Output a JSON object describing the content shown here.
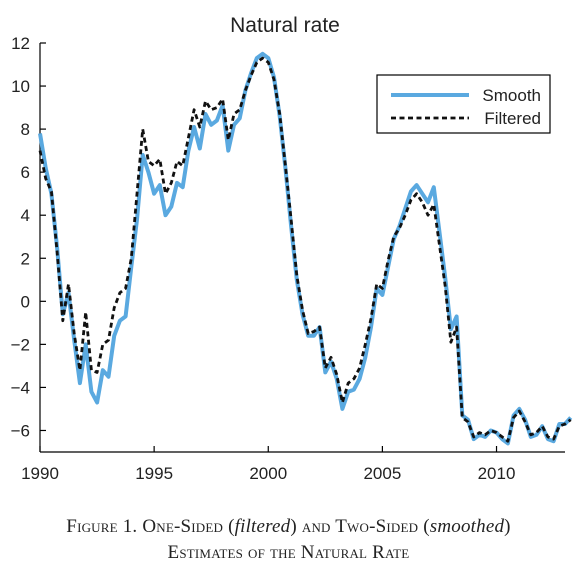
{
  "chart_data": {
    "type": "line",
    "title": "Natural rate",
    "xlabel": "",
    "ylabel": "",
    "xlim": [
      1990,
      2013
    ],
    "ylim": [
      -7,
      12
    ],
    "xticks": [
      1990,
      1995,
      2000,
      2005,
      2010
    ],
    "yticks": [
      12,
      10,
      8,
      6,
      4,
      2,
      0,
      -2,
      -4,
      -6
    ],
    "xtick_labels": [
      "1990",
      "1995",
      "2000",
      "2005",
      "2010"
    ],
    "ytick_labels": [
      "12",
      "10",
      "8",
      "6",
      "4",
      "2",
      "0",
      "−2",
      "−4",
      "−6"
    ],
    "grid": false,
    "legend_position": "top-right",
    "series": [
      {
        "name": "Smooth",
        "color": "#5aa9e0",
        "style": "solid",
        "points": [
          [
            1990.0,
            7.8
          ],
          [
            1990.25,
            6.2
          ],
          [
            1990.5,
            5.0
          ],
          [
            1990.75,
            2.5
          ],
          [
            1991.0,
            -0.6
          ],
          [
            1991.25,
            0.4
          ],
          [
            1991.5,
            -1.8
          ],
          [
            1991.75,
            -3.8
          ],
          [
            1992.0,
            -2.0
          ],
          [
            1992.25,
            -4.2
          ],
          [
            1992.5,
            -4.7
          ],
          [
            1992.75,
            -3.2
          ],
          [
            1993.0,
            -3.5
          ],
          [
            1993.25,
            -1.6
          ],
          [
            1993.5,
            -0.9
          ],
          [
            1993.75,
            -0.7
          ],
          [
            1994.0,
            1.6
          ],
          [
            1994.25,
            3.8
          ],
          [
            1994.5,
            6.8
          ],
          [
            1994.75,
            6.0
          ],
          [
            1995.0,
            5.0
          ],
          [
            1995.25,
            5.4
          ],
          [
            1995.5,
            4.0
          ],
          [
            1995.75,
            4.4
          ],
          [
            1996.0,
            5.5
          ],
          [
            1996.25,
            5.3
          ],
          [
            1996.5,
            7.0
          ],
          [
            1996.75,
            8.1
          ],
          [
            1997.0,
            7.1
          ],
          [
            1997.25,
            8.7
          ],
          [
            1997.5,
            8.2
          ],
          [
            1997.75,
            8.4
          ],
          [
            1998.0,
            9.1
          ],
          [
            1998.25,
            7.0
          ],
          [
            1998.5,
            8.2
          ],
          [
            1998.75,
            8.5
          ],
          [
            1999.0,
            9.8
          ],
          [
            1999.25,
            10.6
          ],
          [
            1999.5,
            11.3
          ],
          [
            1999.75,
            11.5
          ],
          [
            2000.0,
            11.3
          ],
          [
            2000.25,
            10.4
          ],
          [
            2000.5,
            8.6
          ],
          [
            2000.75,
            6.2
          ],
          [
            2001.0,
            3.5
          ],
          [
            2001.25,
            1.0
          ],
          [
            2001.5,
            -0.6
          ],
          [
            2001.75,
            -1.6
          ],
          [
            2002.0,
            -1.6
          ],
          [
            2002.25,
            -1.2
          ],
          [
            2002.5,
            -3.3
          ],
          [
            2002.75,
            -2.8
          ],
          [
            2003.0,
            -3.6
          ],
          [
            2003.25,
            -5.0
          ],
          [
            2003.5,
            -4.2
          ],
          [
            2003.75,
            -4.1
          ],
          [
            2004.0,
            -3.6
          ],
          [
            2004.25,
            -2.6
          ],
          [
            2004.5,
            -1.2
          ],
          [
            2004.75,
            0.6
          ],
          [
            2005.0,
            0.3
          ],
          [
            2005.25,
            1.6
          ],
          [
            2005.5,
            2.9
          ],
          [
            2005.75,
            3.5
          ],
          [
            2006.0,
            4.3
          ],
          [
            2006.25,
            5.1
          ],
          [
            2006.5,
            5.4
          ],
          [
            2006.75,
            5.0
          ],
          [
            2007.0,
            4.6
          ],
          [
            2007.25,
            5.3
          ],
          [
            2007.5,
            3.2
          ],
          [
            2007.75,
            1.1
          ],
          [
            2008.0,
            -1.3
          ],
          [
            2008.25,
            -0.7
          ],
          [
            2008.5,
            -5.3
          ],
          [
            2008.75,
            -5.5
          ],
          [
            2009.0,
            -6.4
          ],
          [
            2009.25,
            -6.2
          ],
          [
            2009.5,
            -6.3
          ],
          [
            2009.75,
            -6.0
          ],
          [
            2010.0,
            -6.1
          ],
          [
            2010.25,
            -6.4
          ],
          [
            2010.5,
            -6.6
          ],
          [
            2010.75,
            -5.3
          ],
          [
            2011.0,
            -5.0
          ],
          [
            2011.25,
            -5.5
          ],
          [
            2011.5,
            -6.3
          ],
          [
            2011.75,
            -6.2
          ],
          [
            2012.0,
            -5.8
          ],
          [
            2012.25,
            -6.4
          ],
          [
            2012.5,
            -6.5
          ],
          [
            2012.75,
            -5.7
          ],
          [
            2013.0,
            -5.7
          ],
          [
            2013.25,
            -5.4
          ]
        ]
      },
      {
        "name": "Filtered",
        "color": "#111111",
        "style": "dashed",
        "points": [
          [
            1990.0,
            7.0
          ],
          [
            1990.25,
            5.7
          ],
          [
            1990.5,
            5.1
          ],
          [
            1990.75,
            2.3
          ],
          [
            1991.0,
            -0.9
          ],
          [
            1991.25,
            0.8
          ],
          [
            1991.5,
            -1.5
          ],
          [
            1991.75,
            -3.2
          ],
          [
            1992.0,
            -0.5
          ],
          [
            1992.25,
            -3.2
          ],
          [
            1992.5,
            -3.3
          ],
          [
            1992.75,
            -2.0
          ],
          [
            1993.0,
            -1.8
          ],
          [
            1993.25,
            -0.3
          ],
          [
            1993.5,
            0.4
          ],
          [
            1993.75,
            0.6
          ],
          [
            1994.0,
            2.0
          ],
          [
            1994.25,
            5.0
          ],
          [
            1994.5,
            8.0
          ],
          [
            1994.75,
            6.5
          ],
          [
            1995.0,
            6.3
          ],
          [
            1995.25,
            6.6
          ],
          [
            1995.5,
            5.0
          ],
          [
            1995.75,
            5.5
          ],
          [
            1996.0,
            6.5
          ],
          [
            1996.25,
            6.3
          ],
          [
            1996.5,
            7.6
          ],
          [
            1996.75,
            8.9
          ],
          [
            1997.0,
            8.1
          ],
          [
            1997.25,
            9.3
          ],
          [
            1997.5,
            8.9
          ],
          [
            1997.75,
            9.0
          ],
          [
            1998.0,
            9.4
          ],
          [
            1998.25,
            7.5
          ],
          [
            1998.5,
            8.7
          ],
          [
            1998.75,
            8.9
          ],
          [
            1999.0,
            9.8
          ],
          [
            1999.25,
            10.5
          ],
          [
            1999.5,
            11.1
          ],
          [
            1999.75,
            11.3
          ],
          [
            2000.0,
            11.1
          ],
          [
            2000.25,
            10.3
          ],
          [
            2000.5,
            8.7
          ],
          [
            2000.75,
            6.3
          ],
          [
            2001.0,
            3.8
          ],
          [
            2001.25,
            1.2
          ],
          [
            2001.5,
            -0.4
          ],
          [
            2001.75,
            -1.5
          ],
          [
            2002.0,
            -1.4
          ],
          [
            2002.25,
            -1.2
          ],
          [
            2002.5,
            -3.1
          ],
          [
            2002.75,
            -2.6
          ],
          [
            2003.0,
            -3.4
          ],
          [
            2003.25,
            -4.7
          ],
          [
            2003.5,
            -3.8
          ],
          [
            2003.75,
            -3.6
          ],
          [
            2004.0,
            -3.1
          ],
          [
            2004.25,
            -2.0
          ],
          [
            2004.5,
            -0.8
          ],
          [
            2004.75,
            0.8
          ],
          [
            2005.0,
            0.6
          ],
          [
            2005.25,
            1.9
          ],
          [
            2005.5,
            3.0
          ],
          [
            2005.75,
            3.4
          ],
          [
            2006.0,
            4.0
          ],
          [
            2006.25,
            4.7
          ],
          [
            2006.5,
            5.0
          ],
          [
            2006.75,
            4.6
          ],
          [
            2007.0,
            4.0
          ],
          [
            2007.25,
            4.5
          ],
          [
            2007.5,
            2.6
          ],
          [
            2007.75,
            0.7
          ],
          [
            2008.0,
            -1.9
          ],
          [
            2008.25,
            -1.2
          ],
          [
            2008.5,
            -5.4
          ],
          [
            2008.75,
            -5.6
          ],
          [
            2009.0,
            -6.3
          ],
          [
            2009.25,
            -6.1
          ],
          [
            2009.5,
            -6.2
          ],
          [
            2009.75,
            -6.0
          ],
          [
            2010.0,
            -6.1
          ],
          [
            2010.25,
            -6.3
          ],
          [
            2010.5,
            -6.5
          ],
          [
            2010.75,
            -5.4
          ],
          [
            2011.0,
            -5.1
          ],
          [
            2011.25,
            -5.6
          ],
          [
            2011.5,
            -6.2
          ],
          [
            2011.75,
            -6.1
          ],
          [
            2012.0,
            -5.8
          ],
          [
            2012.25,
            -6.3
          ],
          [
            2012.5,
            -6.4
          ],
          [
            2012.75,
            -5.8
          ],
          [
            2013.0,
            -5.7
          ],
          [
            2013.25,
            -5.5
          ]
        ]
      }
    ]
  },
  "caption": {
    "line1_prefix": "Figure 1. One-Sided (",
    "line1_italic1": "filtered",
    "line1_mid": ") and Two-Sided (",
    "line1_italic2": "smoothed",
    "line1_suffix": ")",
    "line2": "Estimates of the Natural Rate"
  }
}
